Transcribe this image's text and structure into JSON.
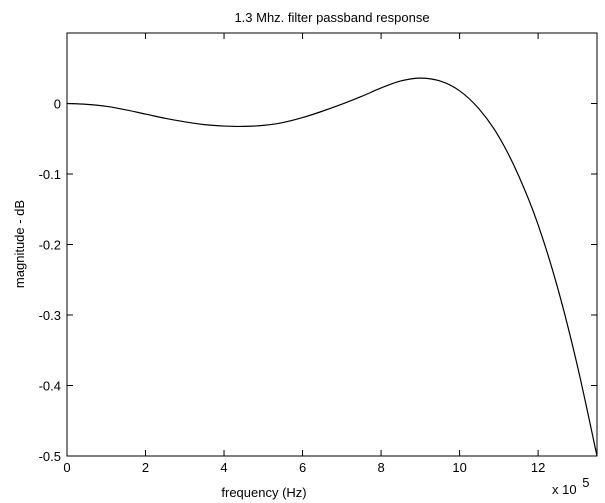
{
  "chart_data": {
    "type": "line",
    "title": "1.3 Mhz. filter passband response",
    "xlabel": "frequency (Hz)",
    "ylabel": "magnitude - dB",
    "x_multiplier_label": "x 10",
    "x_multiplier_exponent": "5",
    "xlim": [
      0,
      13.5
    ],
    "ylim": [
      -0.5,
      0.1
    ],
    "x_ticks": [
      0,
      2,
      4,
      6,
      8,
      10,
      12
    ],
    "x_tick_labels": [
      "0",
      "2",
      "4",
      "6",
      "8",
      "10",
      "12"
    ],
    "y_ticks": [
      0,
      -0.1,
      -0.2,
      -0.3,
      -0.4,
      -0.5
    ],
    "y_tick_labels": [
      "0",
      "-0.1",
      "-0.2",
      "-0.3",
      "-0.4",
      "-0.5"
    ],
    "grid": false,
    "series": [
      {
        "color": "#000000",
        "x": [
          0,
          0.5,
          1,
          1.5,
          2,
          2.5,
          3,
          3.5,
          4,
          4.5,
          5,
          5.5,
          6,
          6.5,
          7,
          7.5,
          8,
          8.5,
          9,
          9.5,
          10,
          10.5,
          11,
          11.5,
          12,
          12.5,
          13,
          13.5
        ],
        "y": [
          0,
          -0.0012,
          -0.004,
          -0.009,
          -0.015,
          -0.021,
          -0.026,
          -0.03,
          -0.032,
          -0.0325,
          -0.031,
          -0.027,
          -0.02,
          -0.011,
          -0.001,
          0.01,
          0.022,
          0.032,
          0.036,
          0.032,
          0.018,
          -0.008,
          -0.047,
          -0.102,
          -0.172,
          -0.262,
          -0.372,
          -0.5
        ]
      }
    ]
  }
}
